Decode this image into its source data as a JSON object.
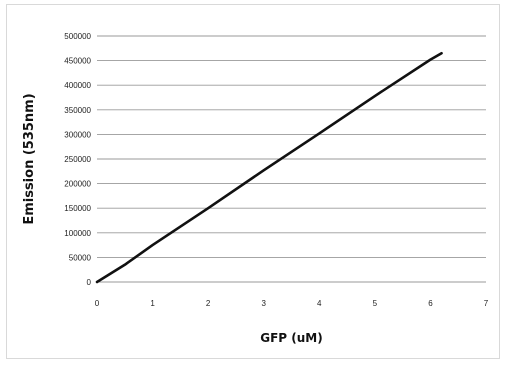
{
  "chart_data": {
    "type": "line",
    "title": "",
    "xlabel": "GFP (uM)",
    "ylabel": "Emission (535nm)",
    "xlim": [
      0,
      7
    ],
    "ylim": [
      0,
      500000
    ],
    "xticks": [
      "0",
      "1",
      "2",
      "3",
      "4",
      "5",
      "6",
      "7"
    ],
    "yticks": [
      "0",
      "50000",
      "100000",
      "150000",
      "200000",
      "250000",
      "300000",
      "350000",
      "400000",
      "450000",
      "500000"
    ],
    "grid": "horizontal",
    "legend": "none",
    "series": [
      {
        "color": "#111111",
        "x": [
          0,
          0.5,
          1,
          2,
          3,
          4,
          5,
          6,
          6.2
        ],
        "y": [
          0,
          35000,
          75000,
          150000,
          227000,
          302000,
          378000,
          452000,
          465000
        ]
      }
    ]
  }
}
